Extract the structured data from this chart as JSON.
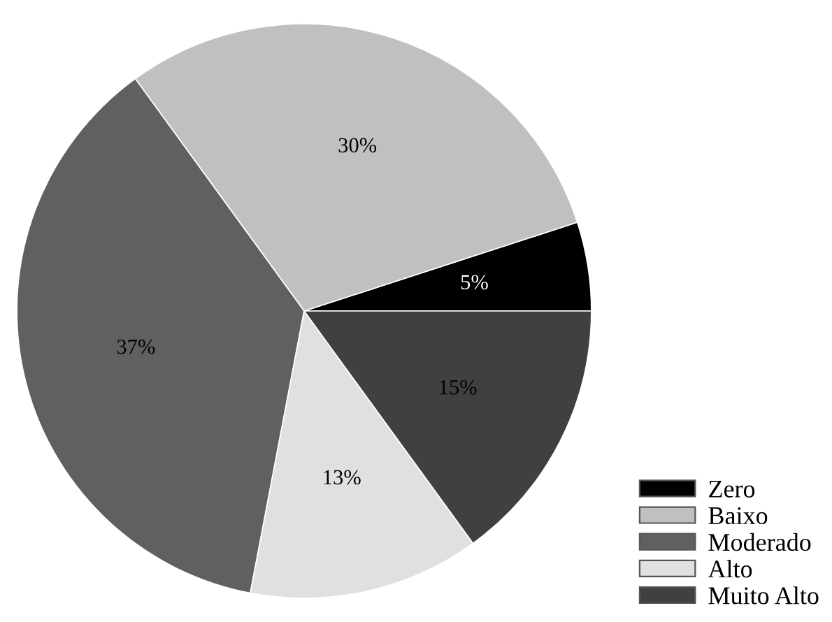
{
  "chart_data": {
    "type": "pie",
    "categories": [
      "Zero",
      "Baixo",
      "Moderado",
      "Alto",
      "Muito Alto"
    ],
    "values": [
      5,
      30,
      37,
      13,
      15
    ],
    "colors": [
      "#000000",
      "#c0c0c0",
      "#606060",
      "#e0e0e0",
      "#404040"
    ],
    "value_labels": [
      "5%",
      "30%",
      "37%",
      "13%",
      "15%"
    ],
    "legend": "bottom right"
  }
}
